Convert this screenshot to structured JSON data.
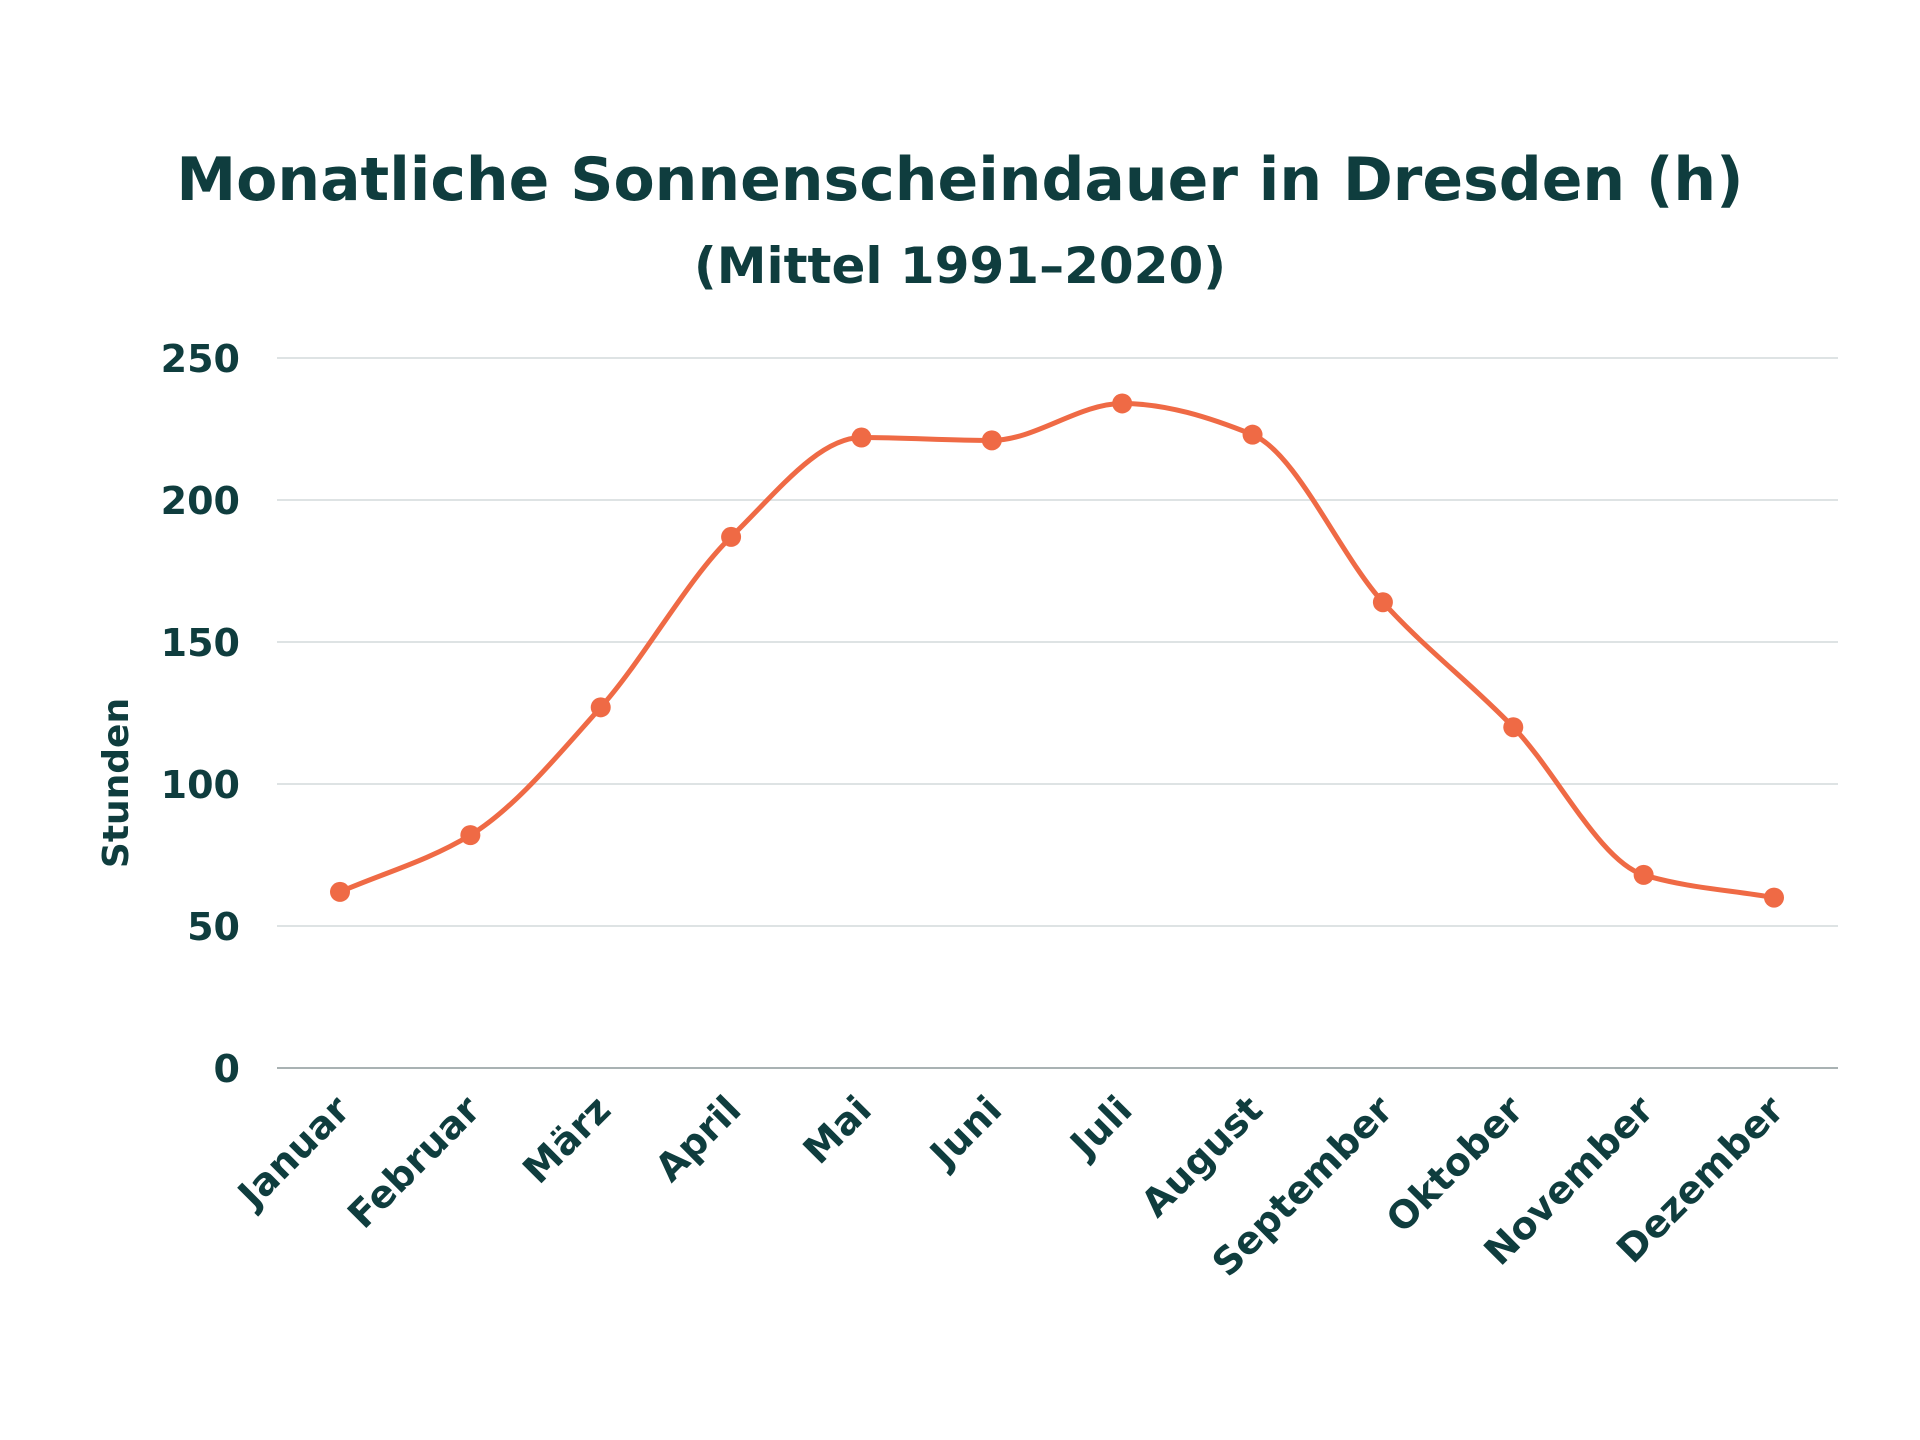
{
  "colors": {
    "line": "#ef6a45",
    "text": "#0f3d3e",
    "grid": "#d4dadb"
  },
  "chart_data": {
    "type": "line",
    "title": "Monatliche Sonnenscheindauer in Dresden (h)",
    "subtitle": "(Mittel 1991–2020)",
    "xlabel": "",
    "ylabel": "Stunden",
    "categories": [
      "Januar",
      "Februar",
      "März",
      "April",
      "Mai",
      "Juni",
      "Juli",
      "August",
      "September",
      "Oktober",
      "November",
      "Dezember"
    ],
    "series": [
      {
        "values": [
          62,
          82,
          127,
          187,
          222,
          221,
          234,
          223,
          164,
          120,
          68,
          60
        ]
      }
    ],
    "ylim": [
      0,
      250
    ],
    "yticks": [
      "0",
      "50",
      "100",
      "150",
      "200",
      "250"
    ],
    "grid": true,
    "legend": "none",
    "smooth": true,
    "markers": true
  }
}
